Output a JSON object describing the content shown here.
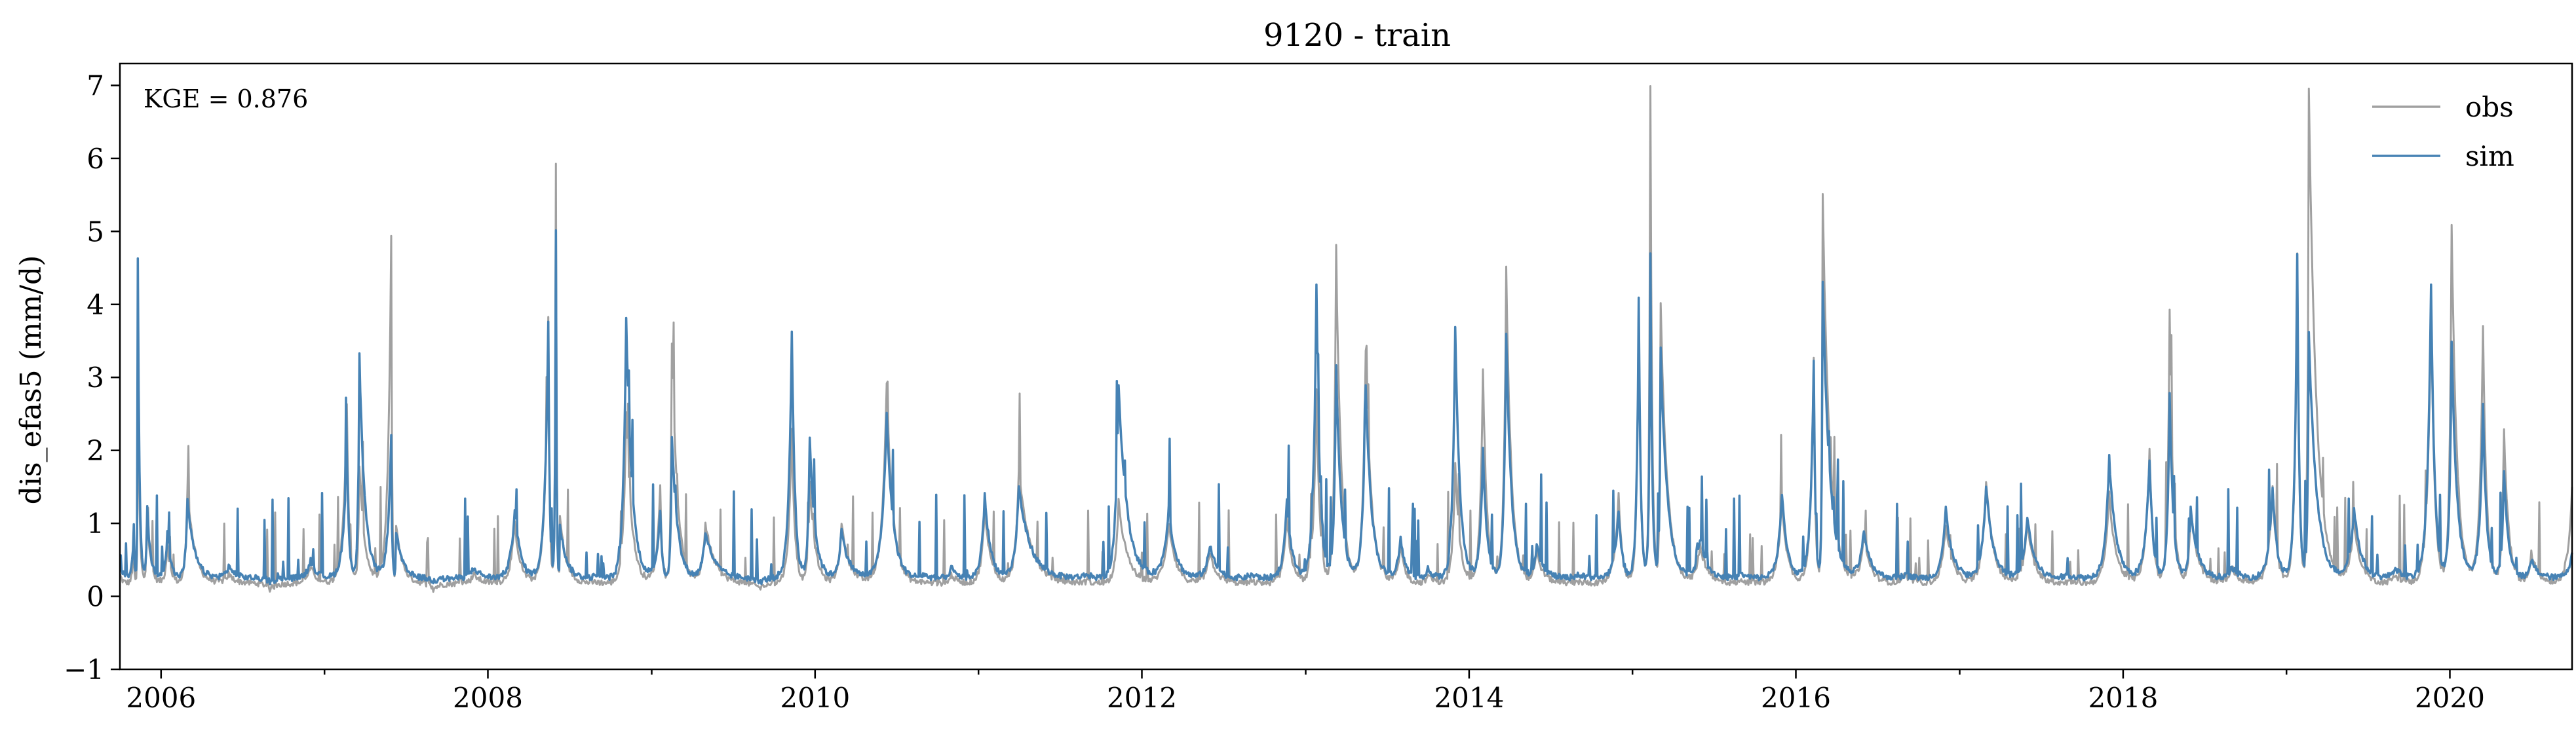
{
  "chart_data": {
    "type": "line",
    "title": "9120 - train",
    "xlabel": "",
    "ylabel": "dis_efas5 (mm/d)",
    "annotation": "KGE = 0.876",
    "xlim": [
      "2005-10-01",
      "2020-09-30"
    ],
    "ylim": [
      -1,
      7.3
    ],
    "x_ticks": [
      "2006",
      "2008",
      "2010",
      "2012",
      "2014",
      "2016",
      "2018",
      "2020"
    ],
    "y_ticks": [
      "−1",
      "0",
      "1",
      "2",
      "3",
      "4",
      "5",
      "6",
      "7"
    ],
    "grid": false,
    "legend": "top-right",
    "series": [
      {
        "name": "obs",
        "color": "#a0a0a0",
        "x": [
          "2005-10-01",
          "2005-11-01",
          "2005-11-10",
          "2005-12-01",
          "2006-01-15",
          "2006-03-01",
          "2006-06-01",
          "2006-09-01",
          "2006-12-01",
          "2007-02-20",
          "2007-03-20",
          "2007-05-30",
          "2007-06-10",
          "2007-09-01",
          "2007-12-01",
          "2008-03-01",
          "2008-05-15",
          "2008-06-01",
          "2008-06-10",
          "2008-09-01",
          "2008-11-05",
          "2009-01-20",
          "2009-02-15",
          "2009-05-01",
          "2009-09-01",
          "2009-11-10",
          "2009-12-20",
          "2010-03-01",
          "2010-06-10",
          "2010-09-01",
          "2010-11-01",
          "2011-01-15",
          "2011-04-01",
          "2011-09-01",
          "2011-11-10",
          "2012-03-01",
          "2012-06-01",
          "2012-09-01",
          "2012-11-20",
          "2013-01-25",
          "2013-03-10",
          "2013-05-15",
          "2013-08-01",
          "2013-10-01",
          "2013-12-01",
          "2014-02-01",
          "2014-03-25",
          "2014-06-01",
          "2014-09-01",
          "2014-12-01",
          "2015-01-15",
          "2015-02-10",
          "2015-03-05",
          "2015-06-01",
          "2015-09-01",
          "2015-12-01",
          "2016-02-10",
          "2016-03-01",
          "2016-06-01",
          "2016-09-01",
          "2016-12-01",
          "2017-03-01",
          "2017-06-01",
          "2017-09-01",
          "2017-12-01",
          "2018-03-01",
          "2018-04-15",
          "2018-06-01",
          "2018-09-01",
          "2018-12-01",
          "2019-01-25",
          "2019-02-20",
          "2019-06-01",
          "2019-09-01",
          "2019-11-20",
          "2020-01-05",
          "2020-03-15",
          "2020-05-01",
          "2020-07-01",
          "2020-09-30"
        ],
        "y": [
          0.3,
          0.7,
          3.2,
          1.1,
          0.7,
          1.5,
          0.3,
          0.1,
          0.4,
          2.6,
          1.8,
          4.9,
          1.0,
          0.1,
          0.3,
          1.0,
          3.8,
          5.95,
          1.1,
          0.2,
          2.5,
          1.5,
          3.5,
          1.0,
          0.1,
          2.3,
          1.6,
          1.0,
          2.9,
          0.2,
          0.3,
          1.2,
          1.7,
          0.2,
          1.3,
          1.0,
          0.6,
          0.2,
          1.1,
          2.8,
          4.8,
          3.4,
          0.7,
          0.3,
          1.8,
          3.1,
          4.5,
          0.6,
          0.2,
          1.4,
          4.1,
          7.0,
          4.0,
          0.7,
          0.2,
          1.3,
          3.3,
          5.5,
          0.8,
          0.3,
          1.0,
          1.6,
          1.0,
          0.2,
          1.4,
          2.0,
          3.9,
          1.2,
          0.4,
          1.5,
          4.7,
          6.95,
          1.0,
          0.3,
          4.0,
          5.1,
          3.7,
          2.3,
          0.6,
          1.5
        ]
      },
      {
        "name": "sim",
        "color": "#4682b4",
        "x": [
          "2005-10-01",
          "2005-11-01",
          "2005-11-10",
          "2005-12-01",
          "2006-01-15",
          "2006-03-01",
          "2006-06-01",
          "2006-09-01",
          "2006-12-01",
          "2007-02-20",
          "2007-03-20",
          "2007-05-30",
          "2007-06-10",
          "2007-09-01",
          "2007-12-01",
          "2008-03-01",
          "2008-05-15",
          "2008-06-01",
          "2008-06-10",
          "2008-09-01",
          "2008-11-05",
          "2009-01-20",
          "2009-02-15",
          "2009-05-01",
          "2009-09-01",
          "2009-11-10",
          "2009-12-20",
          "2010-03-01",
          "2010-06-10",
          "2010-09-01",
          "2010-11-01",
          "2011-01-15",
          "2011-04-01",
          "2011-09-01",
          "2011-11-10",
          "2012-03-01",
          "2012-06-01",
          "2012-09-01",
          "2012-11-20",
          "2013-01-25",
          "2013-03-10",
          "2013-05-15",
          "2013-08-01",
          "2013-10-01",
          "2013-12-01",
          "2014-02-01",
          "2014-03-25",
          "2014-06-01",
          "2014-09-01",
          "2014-12-01",
          "2015-01-15",
          "2015-02-10",
          "2015-03-05",
          "2015-06-01",
          "2015-09-01",
          "2015-12-01",
          "2016-02-10",
          "2016-03-01",
          "2016-06-01",
          "2016-09-01",
          "2016-12-01",
          "2017-03-01",
          "2017-06-01",
          "2017-09-01",
          "2017-12-01",
          "2018-03-01",
          "2018-04-15",
          "2018-06-01",
          "2018-09-01",
          "2018-12-01",
          "2019-01-25",
          "2019-02-20",
          "2019-06-01",
          "2019-09-01",
          "2019-11-20",
          "2020-01-05",
          "2020-03-15",
          "2020-05-01",
          "2020-07-01",
          "2020-09-30"
        ],
        "y": [
          0.5,
          1.0,
          4.65,
          1.2,
          0.9,
          1.3,
          0.4,
          0.2,
          0.5,
          2.0,
          3.3,
          2.2,
          0.9,
          0.2,
          0.4,
          1.2,
          3.8,
          5.05,
          1.0,
          0.3,
          3.85,
          1.2,
          2.2,
          0.9,
          0.2,
          3.65,
          2.2,
          0.9,
          2.5,
          0.3,
          0.4,
          1.4,
          1.5,
          0.3,
          2.9,
          1.2,
          0.7,
          0.3,
          1.3,
          4.3,
          3.2,
          2.9,
          0.8,
          0.4,
          3.7,
          2.0,
          3.6,
          0.7,
          0.3,
          1.2,
          4.1,
          4.7,
          3.4,
          0.8,
          0.3,
          1.4,
          3.2,
          4.3,
          0.9,
          0.3,
          1.2,
          1.5,
          1.1,
          0.3,
          1.9,
          1.9,
          2.8,
          1.2,
          0.4,
          1.5,
          4.7,
          3.6,
          1.2,
          0.4,
          4.3,
          3.5,
          2.6,
          1.7,
          0.5,
          0.6
        ]
      }
    ]
  }
}
